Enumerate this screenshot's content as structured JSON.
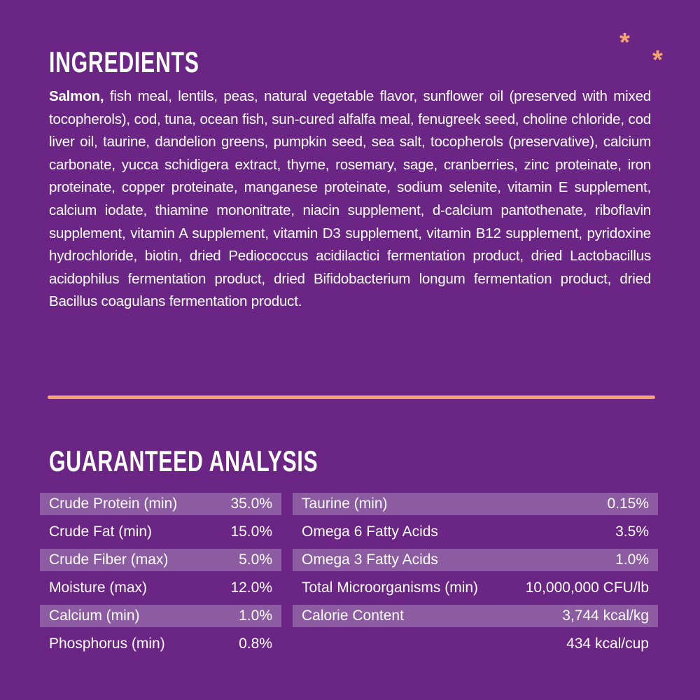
{
  "ingredients": {
    "title": "INGREDIENTS",
    "lead": "Salmon,",
    "text": "fish meal, lentils, peas, natural vegetable flavor, sunflower oil (preserved with mixed tocopherols), cod, tuna, ocean fish, sun-cured alfalfa meal, fenugreek seed, choline chloride, cod liver oil, taurine, dandelion greens, pumpkin seed, sea salt, tocopherols (preservative), calcium carbonate, yucca schidigera extract, thyme, rosemary, sage, cranberries, zinc proteinate, iron proteinate, copper proteinate, manganese proteinate, sodium selenite, vitamin E supplement, calcium iodate, thiamine mononitrate, niacin supplement, d-calcium pantothenate, riboflavin supplement, vitamin A supplement, vitamin D3 supplement, vitamin B12 supplement, pyridoxine hydrochloride, biotin, dried Pediococcus acidilactici fermentation product, dried Lactobacillus acidophilus fermentation product, dried Bifidobacterium longum fermentation product, dried Bacillus coagulans fermentation product."
  },
  "analysis": {
    "title": "GUARANTEED ANALYSIS",
    "left": [
      [
        "Crude Protein (min)",
        "35.0%"
      ],
      [
        "Crude Fat (min)",
        "15.0%"
      ],
      [
        "Crude Fiber (max)",
        "5.0%"
      ],
      [
        "Moisture (max)",
        "12.0%"
      ],
      [
        "Calcium (min)",
        "1.0%"
      ],
      [
        "Phosphorus (min)",
        "0.8%"
      ]
    ],
    "right": [
      [
        "Taurine (min)",
        "0.15%"
      ],
      [
        "Omega 6 Fatty Acids",
        "3.5%"
      ],
      [
        "Omega 3 Fatty Acids",
        "1.0%"
      ],
      [
        "Total Microorganisms (min)",
        "10,000,000 CFU/lb"
      ],
      [
        "Calorie Content",
        "3,744  kcal/kg",
        "434  kcal/cup"
      ]
    ]
  }
}
